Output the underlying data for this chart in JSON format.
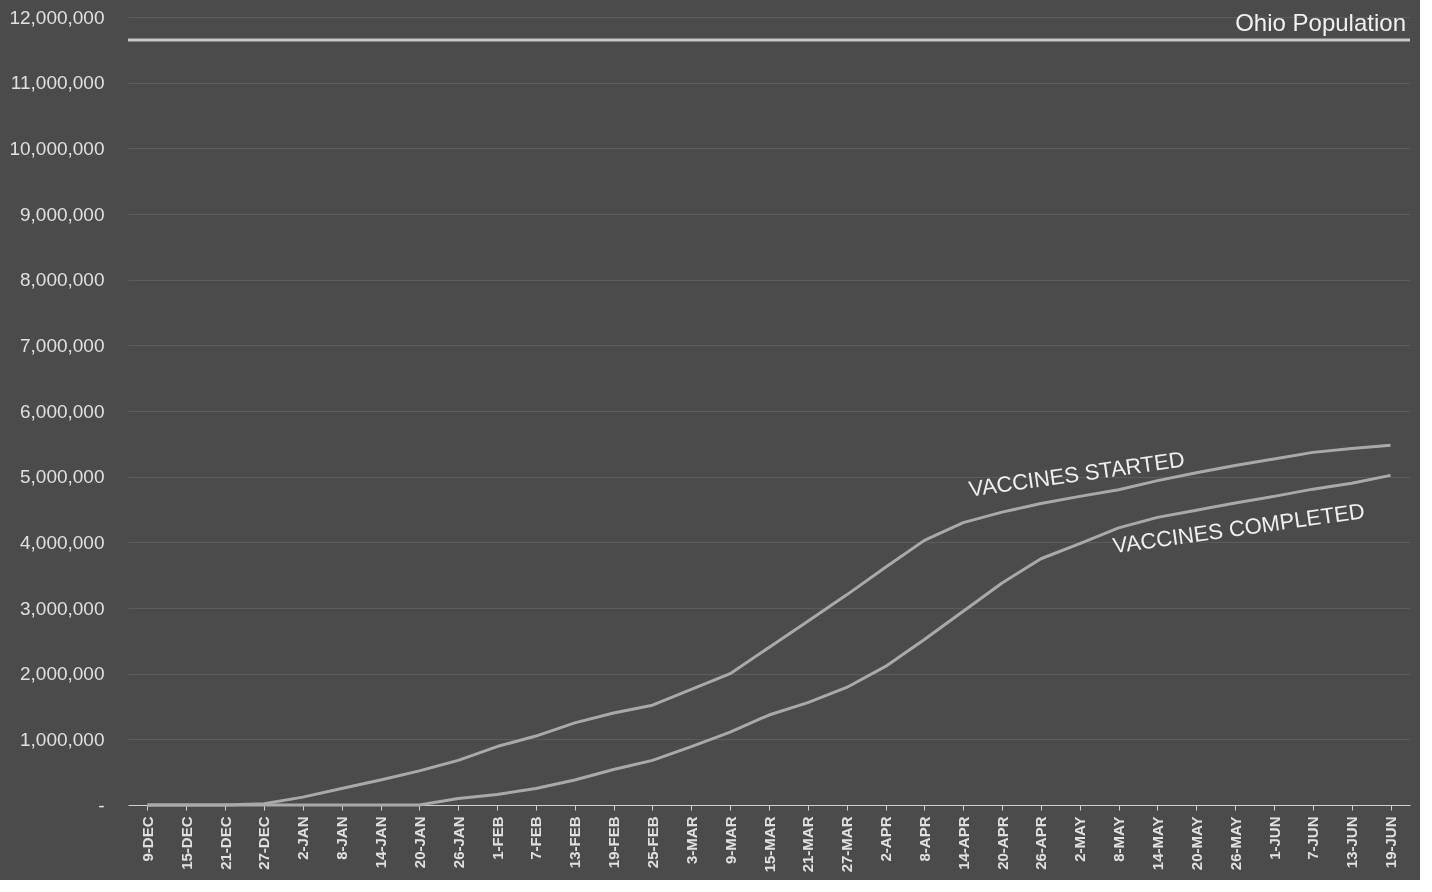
{
  "chart_data": {
    "type": "line",
    "categories": [
      "9-DEC",
      "15-DEC",
      "21-DEC",
      "27-DEC",
      "2-JAN",
      "8-JAN",
      "14-JAN",
      "20-JAN",
      "26-JAN",
      "1-FEB",
      "7-FEB",
      "13-FEB",
      "19-FEB",
      "25-FEB",
      "3-MAR",
      "9-MAR",
      "15-MAR",
      "21-MAR",
      "27-MAR",
      "2-APR",
      "8-APR",
      "14-APR",
      "20-APR",
      "26-APR",
      "2-MAY",
      "8-MAY",
      "14-MAY",
      "20-MAY",
      "26-MAY",
      "1-JUN",
      "7-JUN",
      "13-JUN",
      "19-JUN"
    ],
    "series": [
      {
        "name": "VACCINES STARTED",
        "color": "#a9a9a9",
        "values": [
          0,
          0,
          0,
          20000,
          120000,
          250000,
          380000,
          520000,
          680000,
          890000,
          1050000,
          1250000,
          1400000,
          1520000,
          1760000,
          2000000,
          2400000,
          2800000,
          3200000,
          3620000,
          4030000,
          4300000,
          4460000,
          4590000,
          4700000,
          4800000,
          4940000,
          5060000,
          5170000,
          5270000,
          5370000,
          5430000,
          5480000
        ]
      },
      {
        "name": "VACCINES COMPLETED",
        "color": "#a9a9a9",
        "values": [
          0,
          0,
          0,
          0,
          0,
          0,
          0,
          0,
          100000,
          160000,
          250000,
          380000,
          540000,
          680000,
          890000,
          1110000,
          1370000,
          1560000,
          1790000,
          2110000,
          2520000,
          2950000,
          3380000,
          3750000,
          3980000,
          4220000,
          4380000,
          4490000,
          4600000,
          4700000,
          4810000,
          4900000,
          5020000
        ]
      }
    ],
    "ref_lines": [
      {
        "axis": "y",
        "value": 11650000,
        "label": "Ohio Population",
        "color": "#c8c8c8"
      }
    ],
    "ylim": [
      0,
      12000000
    ],
    "yticks": [
      {
        "value": 0,
        "label": "-"
      },
      {
        "value": 1000000,
        "label": "1,000,000"
      },
      {
        "value": 2000000,
        "label": "2,000,000"
      },
      {
        "value": 3000000,
        "label": "3,000,000"
      },
      {
        "value": 4000000,
        "label": "4,000,000"
      },
      {
        "value": 5000000,
        "label": "5,000,000"
      },
      {
        "value": 6000000,
        "label": "6,000,000"
      },
      {
        "value": 7000000,
        "label": "7,000,000"
      },
      {
        "value": 8000000,
        "label": "8,000,000"
      },
      {
        "value": 9000000,
        "label": "9,000,000"
      },
      {
        "value": 10000000,
        "label": "10,000,000"
      },
      {
        "value": 11000000,
        "label": "11,000,000"
      },
      {
        "value": 12000000,
        "label": "12,000,000"
      }
    ],
    "grid": "y",
    "line_style": "solid",
    "marker": "none"
  }
}
